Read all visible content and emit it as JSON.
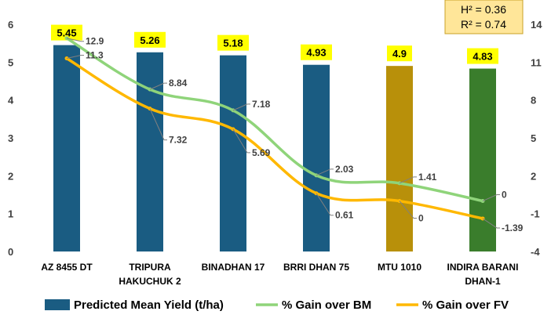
{
  "chart_data": {
    "type": "bar",
    "categories": [
      "AZ 8455 DT",
      "TRIPURA HAKUCHUK 2",
      "BINADHAN 17",
      "BRRI DHAN 75",
      "MTU 1010",
      "INDIRA BARANI DHAN-1"
    ],
    "category_lines": [
      [
        "AZ 8455 DT"
      ],
      [
        "TRIPURA",
        "HAKUCHUK 2"
      ],
      [
        "BINADHAN 17"
      ],
      [
        "BRRI DHAN 75"
      ],
      [
        "MTU 1010"
      ],
      [
        "INDIRA BARANI",
        "DHAN-1"
      ]
    ],
    "bar_series": {
      "name": "Predicted Mean Yield (t/ha)",
      "values": [
        5.45,
        5.26,
        5.18,
        4.93,
        4.9,
        4.83
      ],
      "value_labels": [
        "5.45",
        "5.26",
        "5.18",
        "4.93",
        "4.9",
        "4.83"
      ],
      "colors": [
        "#1a5c82",
        "#1a5c82",
        "#1a5c82",
        "#1a5c82",
        "#b8900a",
        "#3a7d2c"
      ],
      "axis": "left"
    },
    "line_series": [
      {
        "name": "% Gain over BM",
        "values": [
          12.9,
          8.84,
          7.18,
          2.03,
          1.41,
          0
        ],
        "value_labels": [
          "12.9",
          "8.84",
          "7.18",
          "2.03",
          "1.41",
          "0"
        ],
        "color": "#8fd47a",
        "axis": "right"
      },
      {
        "name": "% Gain over FV",
        "values": [
          11.3,
          7.32,
          5.69,
          0.61,
          0,
          -1.39
        ],
        "value_labels": [
          "11.3",
          "7.32",
          "5.69",
          "0.61",
          "0",
          "-1.39"
        ],
        "color": "#ffb800",
        "axis": "right"
      }
    ],
    "y_left": {
      "ylim": [
        0,
        6
      ],
      "ticks": [
        "0",
        "1",
        "2",
        "3",
        "4",
        "5",
        "6"
      ]
    },
    "y_right": {
      "ylim": [
        -4,
        14
      ],
      "ticks": [
        "-4",
        "-1",
        "2",
        "5",
        "8",
        "11",
        "14"
      ]
    },
    "grid": false,
    "legend_position": "bottom",
    "stats": {
      "h2": "H² = 0.36",
      "r2": "R² = 0.74"
    },
    "colors": {
      "bar_label_bg": "#ffff00",
      "stats_bg": "#ffe699",
      "stats_border": "#c9a227"
    }
  }
}
